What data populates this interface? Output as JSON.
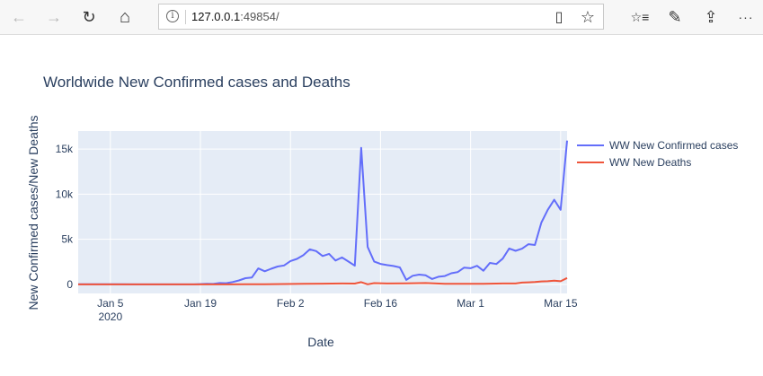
{
  "browser": {
    "back_icon": "←",
    "forward_icon": "→",
    "refresh_icon": "↻",
    "home_icon": "⌂",
    "info_icon": "i",
    "url_host": "127.0.0.1",
    "url_rest": ":49854/",
    "reader_icon": "▯",
    "favorite_icon": "☆",
    "favorites_list_icon": "☆≡",
    "pen_icon": "✎",
    "share_icon": "⇪",
    "more_icon": "···"
  },
  "chart_data": {
    "type": "line",
    "title": "Worldwide New Confirmed cases and Deaths",
    "xlabel": "Date",
    "ylabel": "New Confirmed cases/New Deaths",
    "x_range": [
      "2019-12-31",
      "2020-03-16"
    ],
    "ylim": [
      -1000,
      17000
    ],
    "y_ticks": [
      0,
      5000,
      10000,
      15000
    ],
    "y_tick_labels": [
      "0",
      "5k",
      "10k",
      "15k"
    ],
    "x_ticks": [
      "2020-01-05",
      "2020-01-19",
      "2020-02-02",
      "2020-02-16",
      "2020-03-01",
      "2020-03-15"
    ],
    "x_tick_labels": [
      "Jan 5",
      "Jan 19",
      "Feb 2",
      "Feb 16",
      "Mar 1",
      "Mar 15"
    ],
    "x_tick_sublabel": "2020",
    "grid": true,
    "legend": "right",
    "background": "#e5ecf6",
    "series": [
      {
        "name": "WW New Confirmed cases",
        "color": "#636efa",
        "points": [
          [
            "2019-12-31",
            27
          ],
          [
            "2020-01-03",
            17
          ],
          [
            "2020-01-06",
            15
          ],
          [
            "2020-01-09",
            0
          ],
          [
            "2020-01-12",
            0
          ],
          [
            "2020-01-15",
            0
          ],
          [
            "2020-01-18",
            4
          ],
          [
            "2020-01-20",
            77
          ],
          [
            "2020-01-21",
            50
          ],
          [
            "2020-01-22",
            149
          ],
          [
            "2020-01-23",
            131
          ],
          [
            "2020-01-24",
            259
          ],
          [
            "2020-01-25",
            444
          ],
          [
            "2020-01-26",
            688
          ],
          [
            "2020-01-27",
            769
          ],
          [
            "2020-01-28",
            1771
          ],
          [
            "2020-01-29",
            1459
          ],
          [
            "2020-01-30",
            1737
          ],
          [
            "2020-01-31",
            1981
          ],
          [
            "2020-02-01",
            2099
          ],
          [
            "2020-02-02",
            2589
          ],
          [
            "2020-02-03",
            2825
          ],
          [
            "2020-02-04",
            3235
          ],
          [
            "2020-02-05",
            3884
          ],
          [
            "2020-02-06",
            3697
          ],
          [
            "2020-02-07",
            3151
          ],
          [
            "2020-02-08",
            3387
          ],
          [
            "2020-02-09",
            2653
          ],
          [
            "2020-02-10",
            2984
          ],
          [
            "2020-02-11",
            2538
          ],
          [
            "2020-02-12",
            2071
          ],
          [
            "2020-02-13",
            15141
          ],
          [
            "2020-02-14",
            4156
          ],
          [
            "2020-02-15",
            2538
          ],
          [
            "2020-02-16",
            2273
          ],
          [
            "2020-02-17",
            2140
          ],
          [
            "2020-02-18",
            2048
          ],
          [
            "2020-02-19",
            1886
          ],
          [
            "2020-02-20",
            503
          ],
          [
            "2020-02-21",
            961
          ],
          [
            "2020-02-22",
            1093
          ],
          [
            "2020-02-23",
            1017
          ],
          [
            "2020-02-24",
            597
          ],
          [
            "2020-02-25",
            852
          ],
          [
            "2020-02-26",
            934
          ],
          [
            "2020-02-27",
            1240
          ],
          [
            "2020-02-28",
            1363
          ],
          [
            "2020-02-29",
            1860
          ],
          [
            "2020-03-01",
            1795
          ],
          [
            "2020-03-02",
            2064
          ],
          [
            "2020-03-03",
            1519
          ],
          [
            "2020-03-04",
            2379
          ],
          [
            "2020-03-05",
            2260
          ],
          [
            "2020-03-06",
            2859
          ],
          [
            "2020-03-07",
            3982
          ],
          [
            "2020-03-08",
            3721
          ],
          [
            "2020-03-09",
            3964
          ],
          [
            "2020-03-10",
            4460
          ],
          [
            "2020-03-11",
            4374
          ],
          [
            "2020-03-12",
            6856
          ],
          [
            "2020-03-13",
            8272
          ],
          [
            "2020-03-14",
            9383
          ],
          [
            "2020-03-15",
            8265
          ],
          [
            "2020-03-16",
            15932
          ]
        ]
      },
      {
        "name": "WW New Deaths",
        "color": "#ef553b",
        "points": [
          [
            "2019-12-31",
            0
          ],
          [
            "2020-01-10",
            1
          ],
          [
            "2020-01-17",
            1
          ],
          [
            "2020-01-20",
            3
          ],
          [
            "2020-01-23",
            8
          ],
          [
            "2020-01-26",
            24
          ],
          [
            "2020-01-29",
            26
          ],
          [
            "2020-02-01",
            45
          ],
          [
            "2020-02-04",
            64
          ],
          [
            "2020-02-07",
            86
          ],
          [
            "2020-02-10",
            108
          ],
          [
            "2020-02-12",
            97
          ],
          [
            "2020-02-13",
            254
          ],
          [
            "2020-02-14",
            13
          ],
          [
            "2020-02-15",
            143
          ],
          [
            "2020-02-17",
            105
          ],
          [
            "2020-02-20",
            118
          ],
          [
            "2020-02-23",
            150
          ],
          [
            "2020-02-26",
            60
          ],
          [
            "2020-02-29",
            69
          ],
          [
            "2020-03-03",
            77
          ],
          [
            "2020-03-06",
            103
          ],
          [
            "2020-03-08",
            102
          ],
          [
            "2020-03-09",
            200
          ],
          [
            "2020-03-10",
            232
          ],
          [
            "2020-03-11",
            273
          ],
          [
            "2020-03-12",
            330
          ],
          [
            "2020-03-13",
            356
          ],
          [
            "2020-03-14",
            427
          ],
          [
            "2020-03-15",
            352
          ],
          [
            "2020-03-16",
            710
          ]
        ]
      }
    ]
  }
}
